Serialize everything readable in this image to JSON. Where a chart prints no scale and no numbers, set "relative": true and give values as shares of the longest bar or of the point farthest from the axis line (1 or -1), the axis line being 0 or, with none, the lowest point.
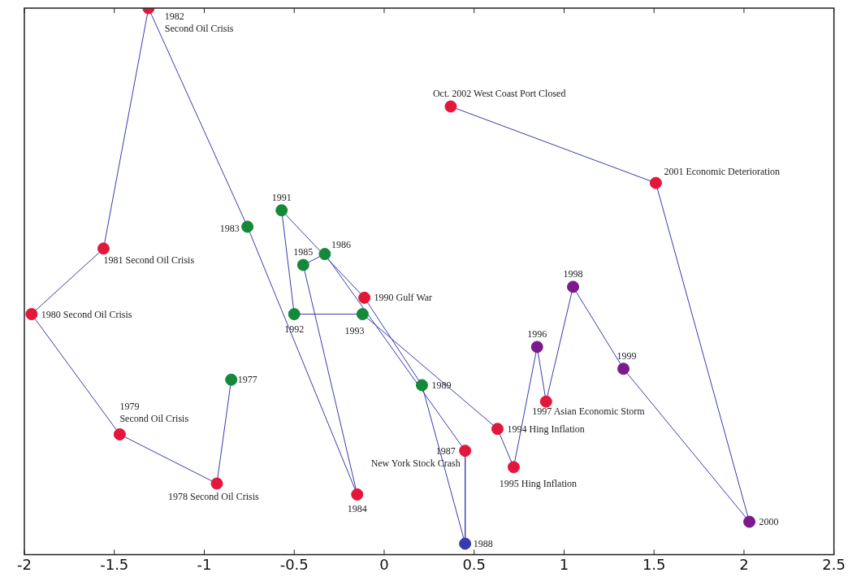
{
  "chart_data": {
    "type": "line",
    "relative": true,
    "x": [
      -0.85,
      -0.93,
      -1.47,
      -1.96,
      -1.56,
      -1.31,
      -0.76,
      -0.15,
      -0.45,
      -0.33,
      0.45,
      0.45,
      0.21,
      -0.11,
      -0.57,
      -0.5,
      -0.12,
      0.63,
      0.72,
      0.85,
      0.9,
      1.05,
      1.33,
      2.03,
      1.51,
      0.37
    ],
    "series": [
      {
        "color": "#3a3ab0",
        "values": [
          0.32,
          0.13,
          0.22,
          0.44,
          0.56,
          1,
          0.6,
          0.11,
          0.53,
          0.55,
          0.19,
          0.02,
          0.31,
          0.47,
          0.63,
          0.44,
          0.44,
          0.23,
          0.16,
          0.38,
          0.28,
          0.49,
          0.34,
          0.06,
          0.68,
          0.82
        ],
        "colors": [
          "#15893a",
          "#e3173a",
          "#e3173a",
          "#e3173a",
          "#e3173a",
          "#e3173a",
          "#15893a",
          "#e3173a",
          "#15893a",
          "#15893a",
          "#e3173a",
          "#3a3ab0",
          "#15893a",
          "#e3173a",
          "#15893a",
          "#15893a",
          "#15893a",
          "#e3173a",
          "#e3173a",
          "#7b1a8c",
          "#e3173a",
          "#7b1a8c",
          "#7b1a8c",
          "#7b1a8c",
          "#e3173a",
          "#e3173a"
        ]
      }
    ],
    "xlim": [
      -2,
      2.5
    ],
    "xticks": [
      -2,
      -1.5,
      -1,
      -0.5,
      0,
      0.5,
      1,
      1.5,
      2,
      2.5
    ],
    "marker": "circle",
    "line_style": "solid",
    "annotations": [
      "1977",
      "1978 Second Oil Crisis",
      "1979\nSecond Oil Crisis",
      "1980 Second Oil Crisis",
      "1981 Second Oil Crisis",
      "1982\nSecond Oil Crisis",
      "1983",
      "1984",
      "1985",
      "1986",
      "1987\nNew York Stock Crash",
      "1988",
      "1989",
      "1990 Gulf War",
      "1991",
      "1992",
      "1993",
      "1994 Hing Inflation",
      "1995 Hing Inflation",
      "1996",
      "1997 Asian Economic Storm",
      "1998",
      "1999",
      "2000",
      "2001 Economic Deterioration",
      "Oct. 2002 West Coast Port Closed"
    ]
  }
}
